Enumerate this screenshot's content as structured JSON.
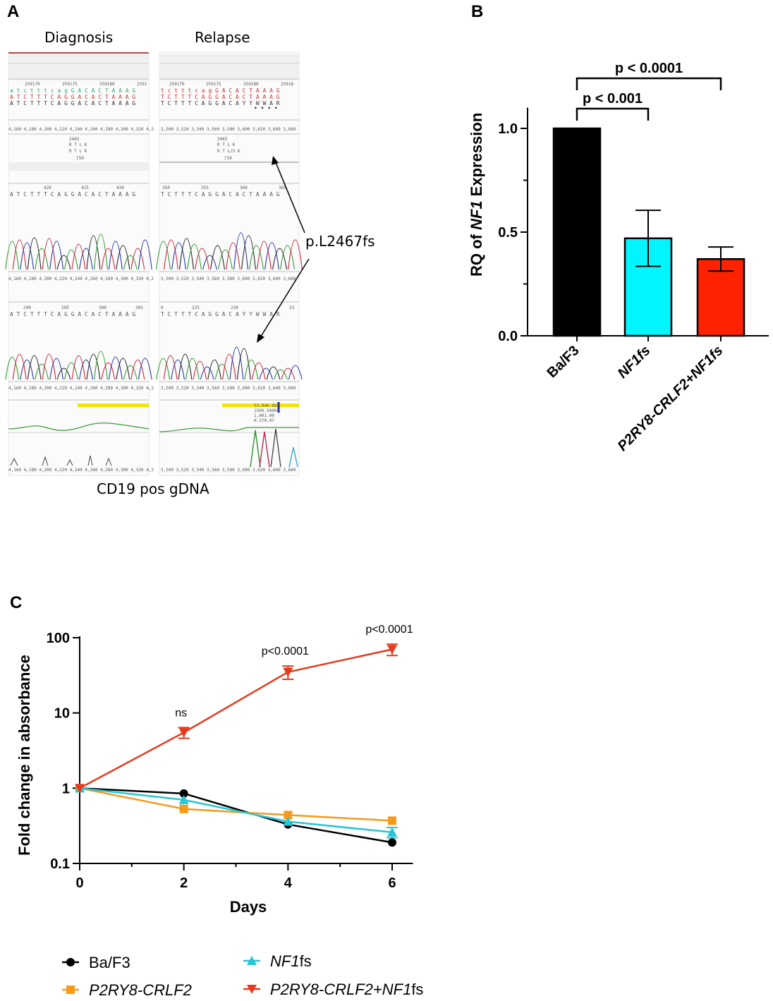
{
  "panels": {
    "a": "A",
    "b": "B",
    "c": "C"
  },
  "panel_a": {
    "col_left": "Diagnosis",
    "col_right": "Relapse",
    "footer": "CD19 pos gDNA",
    "arrow_label": "p.L2467fs",
    "left_positions": [
      "259170",
      "259175",
      "259180",
      "2591"
    ],
    "right_positions": [
      "259170",
      "259175",
      "259180",
      "25918"
    ],
    "left_seq_rows": [
      "a t c t t t c a g G A C A C T A A A G",
      "A T C T T T C A G G A C A C T A A A G",
      "A T C T T T C A G G A C A C T A A A G"
    ],
    "right_seq_rows": [
      "t c t t t c a g G A C A C T A A A G",
      "T C T T T C A G G A C A C T A A A G",
      "T C T T T C A G G A C A Y Y W W A R"
    ],
    "left_scale": "4,160 4,180 4,200 4,220 4,240 4,260 4,280 4,300 4,320 4,3",
    "right_scale": "3,500 3,520 3,540 3,560 3,580 3,600 3,620 3,640 3,660",
    "codon_number": "2465",
    "left_aa_row1": "R     T     L     K",
    "left_aa_row2": "R     T     L     K",
    "right_aa_row1": "R     T     L     K",
    "right_aa_row2": "R     T    L/S    K",
    "pos_ref": "[50",
    "trace1_left_ticks": [
      "420",
      "425",
      "430"
    ],
    "trace1_right_ticks": [
      "350",
      "355",
      "360",
      "365"
    ],
    "trace2_left_ticks": [
      "290",
      "295",
      "300",
      "305"
    ],
    "trace2_right_ticks": [
      "0",
      "225",
      "230",
      "23"
    ],
    "trace1_left_seq": "A T C T T T C A G G A C A C T A A A G",
    "trace1_right_seq": "T C T T T C A G G A C A C T A A A G",
    "trace2_left_seq": "A T C T T T C A G G A C A C T A A A G",
    "trace2_right_seq": "T C T T T C A G G A C A Y Y W W A R",
    "info_values": [
      "33,046.88",
      "1509.5000",
      "1,001.00",
      "0.370.47"
    ]
  },
  "chart_data": [
    {
      "type": "bar",
      "title": "",
      "ylabel_prefix": "RQ of ",
      "ylabel_italic": "NF1",
      "ylabel_suffix": " Expression",
      "xlabel": "",
      "categories": [
        "Ba/F3",
        "NF1fs",
        "P2RY8-CRLF2+NF1fs"
      ],
      "category_italic": [
        false,
        true,
        true
      ],
      "values": [
        1.0,
        0.47,
        0.37
      ],
      "errors": [
        0.0,
        0.135,
        0.058
      ],
      "colors": [
        "#000000",
        "#00f5ff",
        "#ff2200"
      ],
      "ylim": [
        0,
        1.1
      ],
      "yticks": [
        0.0,
        0.5,
        1.0
      ],
      "ytick_labels": [
        "0.0",
        "0.5",
        "1.0"
      ],
      "significance": [
        {
          "from": 0,
          "to": 1,
          "label": "p < 0.001"
        },
        {
          "from": 0,
          "to": 2,
          "label": "p < 0.0001"
        }
      ]
    },
    {
      "type": "line",
      "xlabel": "Days",
      "ylabel": "Fold change in absorbance",
      "yscale": "log",
      "ylim": [
        0.1,
        100
      ],
      "xlim": [
        0,
        6.4
      ],
      "xticks": [
        0,
        2,
        4,
        6
      ],
      "xtick_labels": [
        "0",
        "2",
        "4",
        "6"
      ],
      "yticks": [
        0.1,
        1,
        10,
        100
      ],
      "ytick_labels": [
        "0.1",
        "1",
        "10",
        "100"
      ],
      "x": [
        0,
        2,
        4,
        6
      ],
      "series": [
        {
          "name": "Ba/F3",
          "italic_part": "",
          "plain_part": "Ba/F3",
          "marker": "circle",
          "color": "#000000",
          "values": [
            1.0,
            0.85,
            0.33,
            0.19
          ],
          "errors": [
            0,
            0,
            0,
            0
          ]
        },
        {
          "name": "P2RY8-CRLF2",
          "italic_part": "P2RY8-CRLF2",
          "plain_part": "",
          "marker": "square",
          "color": "#f59a1b",
          "values": [
            1.0,
            0.53,
            0.44,
            0.37
          ],
          "errors": [
            0,
            0,
            0,
            0
          ]
        },
        {
          "name": "NF1fs",
          "italic_part": "NF1",
          "plain_part": "fs",
          "marker": "triangle-up",
          "color": "#26c6d4",
          "values": [
            1.0,
            0.7,
            0.36,
            0.26
          ],
          "errors": [
            0,
            0,
            0,
            0.04
          ]
        },
        {
          "name": "P2RY8-CRLF2+NF1fs",
          "italic_part": "P2RY8-CRLF2+NF1",
          "plain_part": "fs",
          "marker": "triangle-down",
          "color": "#e53a1e",
          "values": [
            1.0,
            5.5,
            35,
            70
          ],
          "errors": [
            0,
            0.9,
            7,
            12
          ]
        }
      ],
      "annotations": [
        {
          "x": 2,
          "label": "ns"
        },
        {
          "x": 4,
          "label": "p<0.0001"
        },
        {
          "x": 6,
          "label": "p<0.0001"
        }
      ]
    }
  ]
}
